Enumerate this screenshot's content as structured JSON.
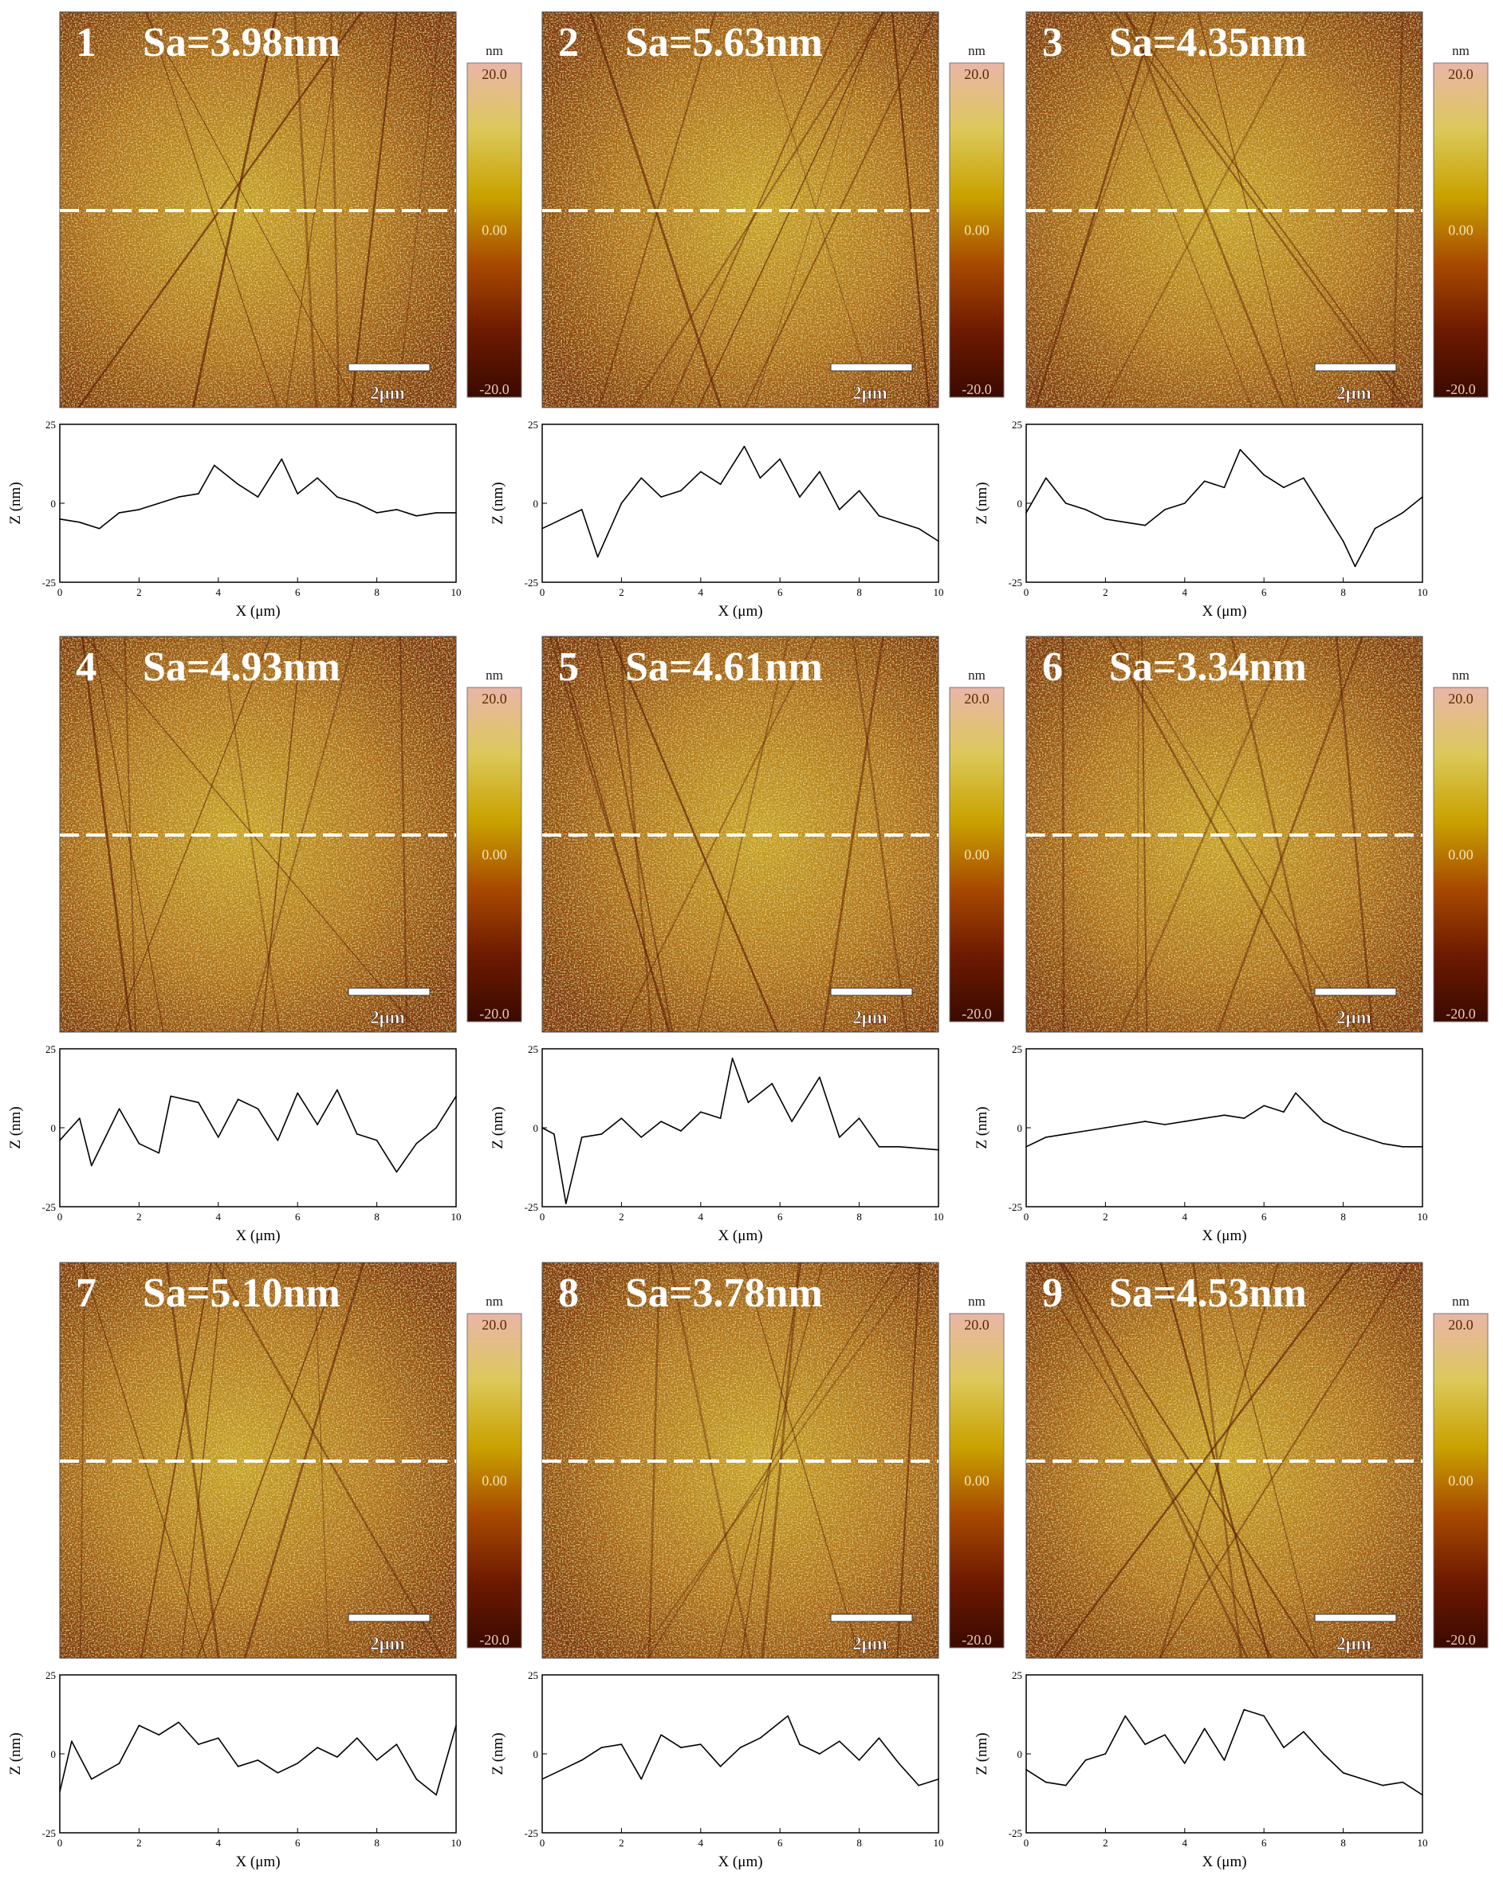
{
  "figure": {
    "colormap": [
      "#3a0a00",
      "#6e1a00",
      "#a84a00",
      "#c9a200",
      "#dcc85a",
      "#e9b5a7"
    ],
    "colorbar": {
      "unit": "nm",
      "ticks": [
        "20.0",
        "0.00",
        "-20.0"
      ],
      "range": [
        -20,
        20
      ]
    },
    "scalebar_label": "2μm",
    "dashed_line_color": "#ffffff",
    "panels": [
      {
        "label": "1",
        "sa": "Sa=3.98nm"
      },
      {
        "label": "2",
        "sa": "Sa=5.63nm"
      },
      {
        "label": "3",
        "sa": "Sa=4.35nm"
      },
      {
        "label": "4",
        "sa": "Sa=4.93nm"
      },
      {
        "label": "5",
        "sa": "Sa=4.61nm"
      },
      {
        "label": "6",
        "sa": "Sa=3.34nm"
      },
      {
        "label": "7",
        "sa": "Sa=5.10nm"
      },
      {
        "label": "8",
        "sa": "Sa=3.78nm"
      },
      {
        "label": "9",
        "sa": "Sa=4.53nm"
      }
    ]
  },
  "chart_data": [
    {
      "panel": "1",
      "type": "line",
      "xlabel": "X (μm)",
      "ylabel": "Z (nm)",
      "xlim": [
        0,
        10
      ],
      "ylim": [
        -25,
        25
      ],
      "xticks": [
        "0",
        "2",
        "4",
        "6",
        "8",
        "10"
      ],
      "yticks": [
        "25",
        "0",
        "-25"
      ],
      "series": [
        {
          "x": [
            0,
            0.5,
            1,
            1.5,
            2,
            2.5,
            3,
            3.5,
            3.9,
            4.5,
            5,
            5.6,
            6,
            6.5,
            7,
            7.5,
            8,
            8.5,
            9,
            9.5,
            10
          ],
          "values": [
            -5,
            -6,
            -8,
            -3,
            -2,
            0,
            2,
            3,
            12,
            6,
            2,
            14,
            3,
            8,
            2,
            0,
            -3,
            -2,
            -4,
            -3,
            -3
          ]
        }
      ]
    },
    {
      "panel": "2",
      "type": "line",
      "xlabel": "X (μm)",
      "ylabel": "Z (nm)",
      "xlim": [
        0,
        10
      ],
      "ylim": [
        -25,
        25
      ],
      "xticks": [
        "0",
        "2",
        "4",
        "6",
        "8",
        "10"
      ],
      "yticks": [
        "25",
        "0",
        "-25"
      ],
      "series": [
        {
          "x": [
            0,
            0.5,
            1,
            1.4,
            2,
            2.5,
            3,
            3.5,
            4,
            4.5,
            5.1,
            5.5,
            6,
            6.5,
            7,
            7.5,
            8,
            8.5,
            9,
            9.5,
            10
          ],
          "values": [
            -8,
            -5,
            -2,
            -17,
            0,
            8,
            2,
            4,
            10,
            6,
            18,
            8,
            14,
            2,
            10,
            -2,
            4,
            -4,
            -6,
            -8,
            -12
          ]
        }
      ]
    },
    {
      "panel": "3",
      "type": "line",
      "xlabel": "X (μm)",
      "ylabel": "Z (nm)",
      "xlim": [
        0,
        10
      ],
      "ylim": [
        -25,
        25
      ],
      "xticks": [
        "0",
        "2",
        "4",
        "6",
        "8",
        "10"
      ],
      "yticks": [
        "25",
        "0",
        "-25"
      ],
      "series": [
        {
          "x": [
            0,
            0.5,
            1,
            1.5,
            2,
            2.5,
            3,
            3.5,
            4,
            4.5,
            5,
            5.4,
            6,
            6.5,
            7,
            7.5,
            8,
            8.3,
            8.8,
            9.5,
            10
          ],
          "values": [
            -3,
            8,
            0,
            -2,
            -5,
            -6,
            -7,
            -2,
            0,
            7,
            5,
            17,
            9,
            5,
            8,
            -2,
            -12,
            -20,
            -8,
            -3,
            2
          ]
        }
      ]
    },
    {
      "panel": "4",
      "type": "line",
      "xlabel": "X (μm)",
      "ylabel": "Z (nm)",
      "xlim": [
        0,
        10
      ],
      "ylim": [
        -25,
        25
      ],
      "xticks": [
        "0",
        "2",
        "4",
        "6",
        "8",
        "10"
      ],
      "yticks": [
        "25",
        "0",
        "-25"
      ],
      "series": [
        {
          "x": [
            0,
            0.5,
            0.8,
            1.5,
            2,
            2.5,
            2.8,
            3.5,
            4,
            4.5,
            5,
            5.5,
            6,
            6.5,
            7,
            7.5,
            8,
            8.5,
            9,
            9.5,
            10
          ],
          "values": [
            -4,
            3,
            -12,
            6,
            -5,
            -8,
            10,
            8,
            -3,
            9,
            6,
            -4,
            11,
            1,
            12,
            -2,
            -4,
            -14,
            -5,
            0,
            10
          ]
        }
      ]
    },
    {
      "panel": "5",
      "type": "line",
      "xlabel": "X (μm)",
      "ylabel": "Z (nm)",
      "xlim": [
        0,
        10
      ],
      "ylim": [
        -25,
        25
      ],
      "xticks": [
        "0",
        "2",
        "4",
        "6",
        "8",
        "10"
      ],
      "yticks": [
        "25",
        "0",
        "-25"
      ],
      "series": [
        {
          "x": [
            0,
            0.3,
            0.6,
            1,
            1.5,
            2,
            2.5,
            3,
            3.5,
            4,
            4.5,
            4.8,
            5.2,
            5.8,
            6.3,
            7,
            7.5,
            8,
            8.5,
            9,
            10
          ],
          "values": [
            0,
            -2,
            -24,
            -3,
            -2,
            3,
            -3,
            2,
            -1,
            5,
            3,
            22,
            8,
            14,
            2,
            16,
            -3,
            3,
            -6,
            -6,
            -7
          ]
        }
      ]
    },
    {
      "panel": "6",
      "type": "line",
      "xlabel": "X (μm)",
      "ylabel": "Z (nm)",
      "xlim": [
        0,
        10
      ],
      "ylim": [
        -25,
        25
      ],
      "xticks": [
        "0",
        "2",
        "4",
        "6",
        "8",
        "10"
      ],
      "yticks": [
        "25",
        "0",
        "-25"
      ],
      "series": [
        {
          "x": [
            0,
            0.5,
            1,
            1.5,
            2,
            2.5,
            3,
            3.5,
            4,
            4.5,
            5,
            5.5,
            6,
            6.5,
            6.8,
            7.5,
            8,
            8.5,
            9,
            9.5,
            10
          ],
          "values": [
            -6,
            -3,
            -2,
            -1,
            0,
            1,
            2,
            1,
            2,
            3,
            4,
            3,
            7,
            5,
            11,
            2,
            -1,
            -3,
            -5,
            -6,
            -6
          ]
        }
      ]
    },
    {
      "panel": "7",
      "type": "line",
      "xlabel": "X (μm)",
      "ylabel": "Z (nm)",
      "xlim": [
        0,
        10
      ],
      "ylim": [
        -25,
        25
      ],
      "xticks": [
        "0",
        "2",
        "4",
        "6",
        "8",
        "10"
      ],
      "yticks": [
        "25",
        "0",
        "-25"
      ],
      "series": [
        {
          "x": [
            0,
            0.3,
            0.8,
            1.5,
            2,
            2.5,
            3,
            3.5,
            4,
            4.5,
            5,
            5.5,
            6,
            6.5,
            7,
            7.5,
            8,
            8.5,
            9,
            9.5,
            10
          ],
          "values": [
            -12,
            4,
            -8,
            -3,
            9,
            6,
            10,
            3,
            5,
            -4,
            -2,
            -6,
            -3,
            2,
            -1,
            5,
            -2,
            3,
            -8,
            -13,
            9
          ]
        }
      ]
    },
    {
      "panel": "8",
      "type": "line",
      "xlabel": "X (μm)",
      "ylabel": "Z (nm)",
      "xlim": [
        0,
        10
      ],
      "ylim": [
        -25,
        25
      ],
      "xticks": [
        "0",
        "2",
        "4",
        "6",
        "8",
        "10"
      ],
      "yticks": [
        "25",
        "0",
        "-25"
      ],
      "series": [
        {
          "x": [
            0,
            0.5,
            1,
            1.5,
            2,
            2.5,
            3,
            3.5,
            4,
            4.5,
            5,
            5.5,
            6.2,
            6.5,
            7,
            7.5,
            8,
            8.5,
            9,
            9.5,
            10
          ],
          "values": [
            -8,
            -5,
            -2,
            2,
            3,
            -8,
            6,
            2,
            3,
            -4,
            2,
            5,
            12,
            3,
            0,
            4,
            -2,
            5,
            -3,
            -10,
            -8
          ]
        }
      ]
    },
    {
      "panel": "9",
      "type": "line",
      "xlabel": "X (μm)",
      "ylabel": "Z (nm)",
      "xlim": [
        0,
        10
      ],
      "ylim": [
        -25,
        25
      ],
      "xticks": [
        "0",
        "2",
        "4",
        "6",
        "8",
        "10"
      ],
      "yticks": [
        "25",
        "0",
        "-25"
      ],
      "series": [
        {
          "x": [
            0,
            0.5,
            1,
            1.5,
            2,
            2.5,
            3,
            3.5,
            4,
            4.5,
            5,
            5.5,
            6,
            6.5,
            7,
            7.5,
            8,
            8.5,
            9,
            9.5,
            10
          ],
          "values": [
            -5,
            -9,
            -10,
            -2,
            0,
            12,
            3,
            6,
            -3,
            8,
            -2,
            14,
            12,
            2,
            7,
            0,
            -6,
            -8,
            -10,
            -9,
            -13
          ]
        }
      ]
    }
  ]
}
